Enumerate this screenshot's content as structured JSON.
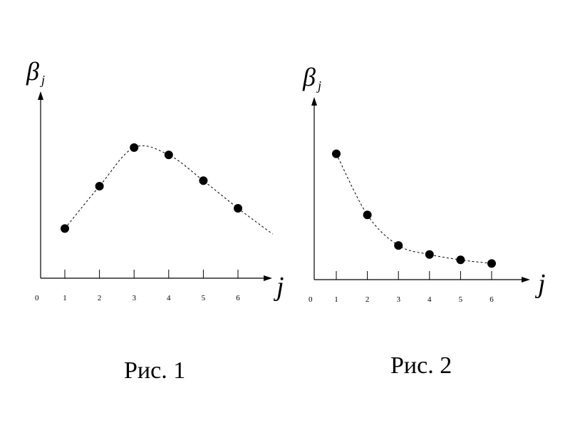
{
  "chart_data": [
    {
      "type": "scatter",
      "title": "",
      "caption": "Рис. 1",
      "ylabel_main": "β",
      "ylabel_sub": "j",
      "xlabel": "j",
      "origin_label": "0",
      "tick_labels": [
        "1",
        "2",
        "3",
        "4",
        "5",
        "6"
      ],
      "trend_line": "dashed",
      "points": [
        {
          "x": 1,
          "y": 0.27
        },
        {
          "x": 2,
          "y": 0.5
        },
        {
          "x": 3,
          "y": 0.71
        },
        {
          "x": 4,
          "y": 0.67
        },
        {
          "x": 5,
          "y": 0.53
        },
        {
          "x": 6,
          "y": 0.38
        }
      ]
    },
    {
      "type": "scatter",
      "title": "",
      "caption": "Рис. 2",
      "ylabel_main": "β",
      "ylabel_sub": "j",
      "xlabel": "j",
      "origin_label": "0",
      "tick_labels": [
        "1",
        "2",
        "3",
        "4",
        "5",
        "6"
      ],
      "trend_line": "dashed",
      "points": [
        {
          "x": 1,
          "y": 0.7
        },
        {
          "x": 2,
          "y": 0.36
        },
        {
          "x": 3,
          "y": 0.19
        },
        {
          "x": 4,
          "y": 0.14
        },
        {
          "x": 5,
          "y": 0.11
        },
        {
          "x": 6,
          "y": 0.09
        }
      ]
    }
  ]
}
